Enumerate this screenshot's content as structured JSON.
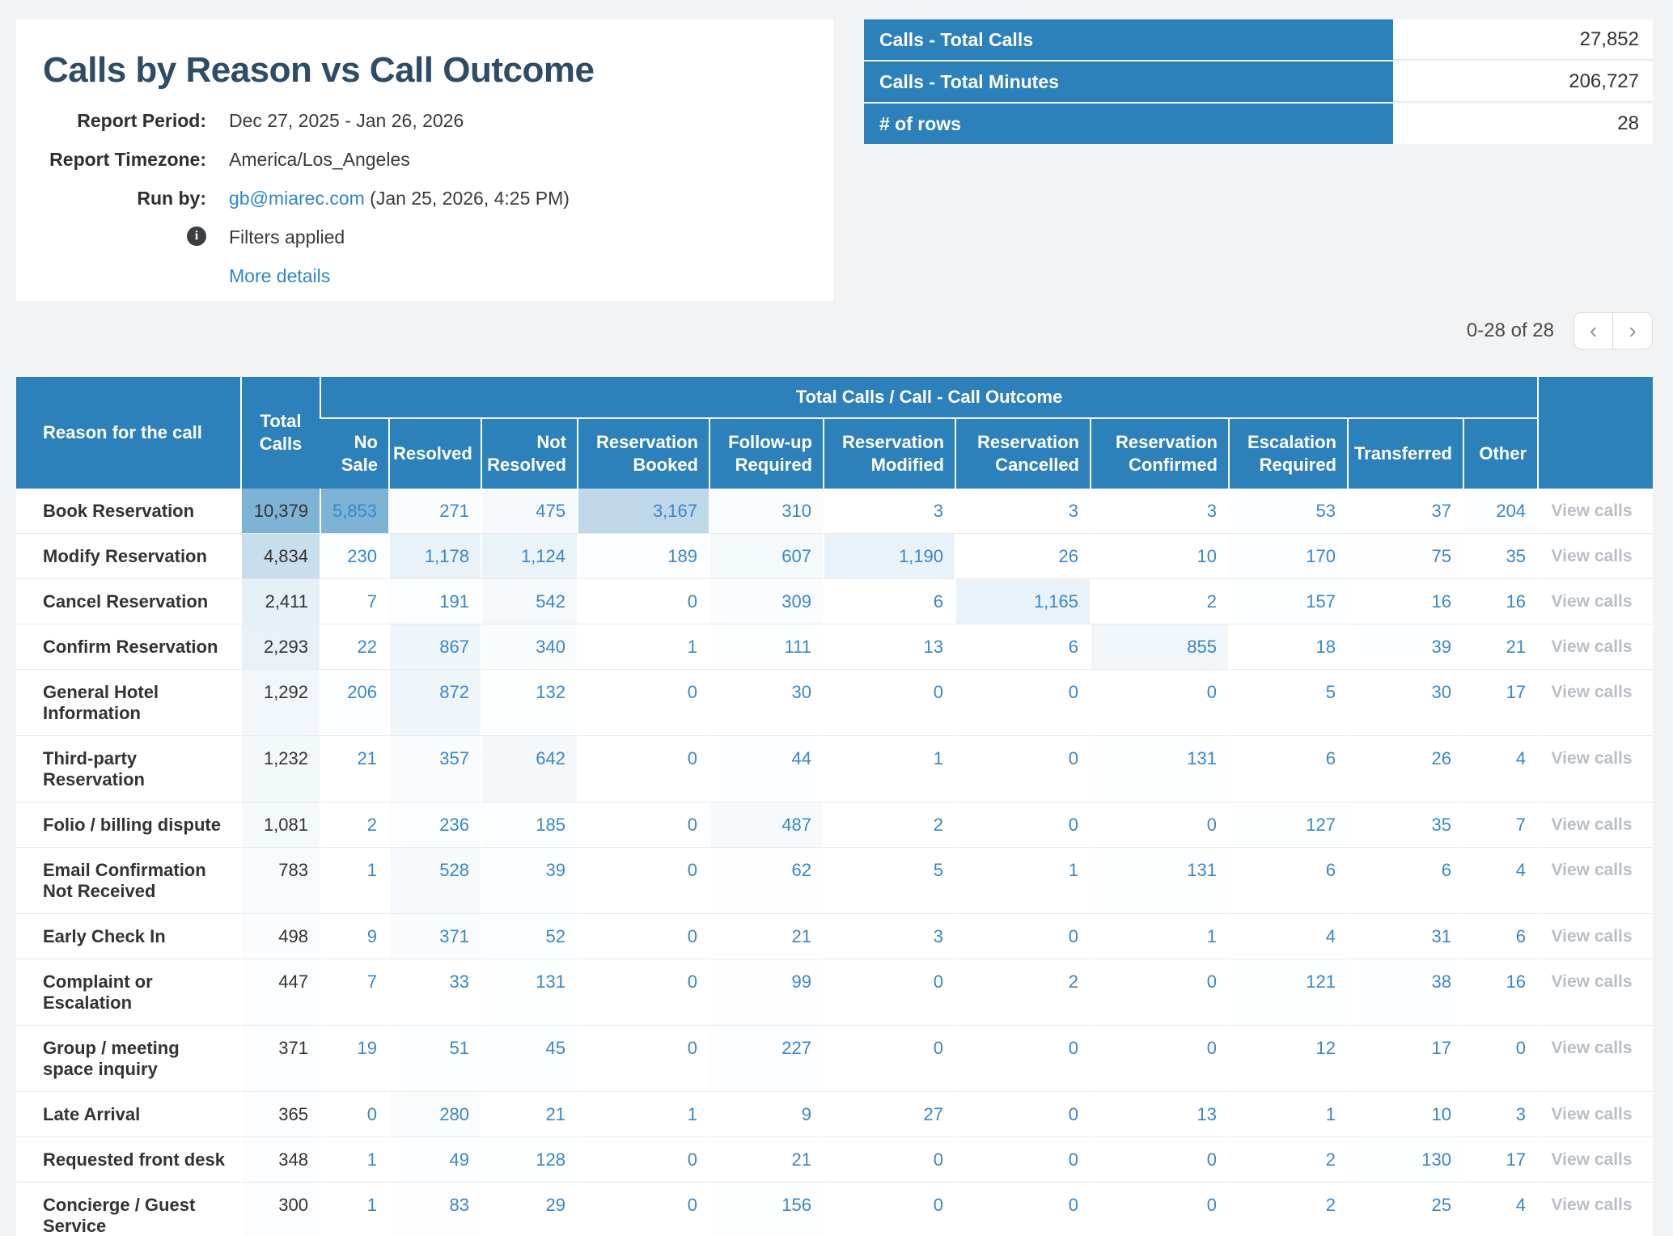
{
  "report": {
    "title": "Calls by Reason vs Call Outcome",
    "meta": [
      {
        "label": "Report Period:",
        "value": "Dec 27, 2025 - Jan 26, 2026"
      },
      {
        "label": "Report Timezone:",
        "value": "America/Los_Angeles"
      },
      {
        "label": "Run by:",
        "link": "gb@miarec.com",
        "suffix": " (Jan 25, 2026, 4:25 PM)"
      }
    ],
    "info_icon": "i",
    "filters_note": "Filters applied",
    "more_details": "More details"
  },
  "summary": {
    "rows": [
      {
        "label": "Calls - Total Calls",
        "value": "27,852"
      },
      {
        "label": "Calls - Total Minutes",
        "value": "206,727"
      },
      {
        "label": "# of rows",
        "value": "28"
      }
    ]
  },
  "pagination": {
    "range_text": "0-28 of 28",
    "prev_icon": "‹",
    "next_icon": "›"
  },
  "table": {
    "reason_header": "Reason for the call",
    "total_header": "Total Calls",
    "group_header": "Total Calls / Call - Call Outcome",
    "outcome_headers": [
      "No Sale",
      "Resolved",
      "Not Resolved",
      "Reservation Booked",
      "Follow-up Required",
      "Reservation Modified",
      "Reservation Cancelled",
      "Reservation Confirmed",
      "Escalation Required",
      "Transferred",
      "Other"
    ],
    "view_calls_label": "View calls",
    "heat": {
      "base_color": "#2980b9",
      "max_total": 10379,
      "max_outcome": 5853,
      "max_alpha": 0.6,
      "gamma": 1.1
    },
    "rows": [
      {
        "reason": "Book Reservation",
        "total": 10379,
        "outcomes": [
          5853,
          271,
          475,
          3167,
          310,
          3,
          3,
          3,
          53,
          37,
          204
        ]
      },
      {
        "reason": "Modify Reservation",
        "total": 4834,
        "outcomes": [
          230,
          1178,
          1124,
          189,
          607,
          1190,
          26,
          10,
          170,
          75,
          35
        ]
      },
      {
        "reason": "Cancel Reservation",
        "total": 2411,
        "outcomes": [
          7,
          191,
          542,
          0,
          309,
          6,
          1165,
          2,
          157,
          16,
          16
        ]
      },
      {
        "reason": "Confirm Reservation",
        "total": 2293,
        "outcomes": [
          22,
          867,
          340,
          1,
          111,
          13,
          6,
          855,
          18,
          39,
          21
        ]
      },
      {
        "reason": "General Hotel Information",
        "total": 1292,
        "outcomes": [
          206,
          872,
          132,
          0,
          30,
          0,
          0,
          0,
          5,
          30,
          17
        ]
      },
      {
        "reason": "Third-party Reservation",
        "total": 1232,
        "outcomes": [
          21,
          357,
          642,
          0,
          44,
          1,
          0,
          131,
          6,
          26,
          4
        ]
      },
      {
        "reason": "Folio / billing dispute",
        "total": 1081,
        "outcomes": [
          2,
          236,
          185,
          0,
          487,
          2,
          0,
          0,
          127,
          35,
          7
        ]
      },
      {
        "reason": "Email Confirmation Not Received",
        "total": 783,
        "outcomes": [
          1,
          528,
          39,
          0,
          62,
          5,
          1,
          131,
          6,
          6,
          4
        ]
      },
      {
        "reason": "Early Check In",
        "total": 498,
        "outcomes": [
          9,
          371,
          52,
          0,
          21,
          3,
          0,
          1,
          4,
          31,
          6
        ]
      },
      {
        "reason": "Complaint or Escalation",
        "total": 447,
        "outcomes": [
          7,
          33,
          131,
          0,
          99,
          0,
          2,
          0,
          121,
          38,
          16
        ]
      },
      {
        "reason": "Group / meeting space inquiry",
        "total": 371,
        "outcomes": [
          19,
          51,
          45,
          0,
          227,
          0,
          0,
          0,
          12,
          17,
          0
        ]
      },
      {
        "reason": "Late Arrival",
        "total": 365,
        "outcomes": [
          0,
          280,
          21,
          1,
          9,
          27,
          0,
          13,
          1,
          10,
          3
        ]
      },
      {
        "reason": "Requested front desk",
        "total": 348,
        "outcomes": [
          1,
          49,
          128,
          0,
          21,
          0,
          0,
          0,
          2,
          130,
          17
        ]
      },
      {
        "reason": "Concierge / Guest Service",
        "total": 300,
        "outcomes": [
          1,
          83,
          29,
          0,
          156,
          0,
          0,
          0,
          2,
          25,
          4
        ]
      }
    ]
  }
}
